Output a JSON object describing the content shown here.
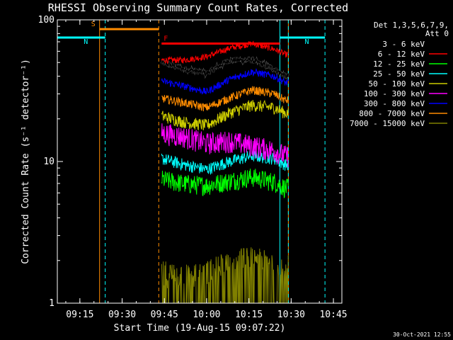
{
  "chart_data": {
    "type": "line",
    "title": "RHESSI Observing Summary Count Rates, Corrected",
    "xlabel": "Start Time (19-Aug-15 09:07:22)",
    "ylabel": "Corrected Count Rate (s⁻¹ detector⁻¹)",
    "yscale": "log",
    "ylim": [
      1,
      100
    ],
    "xlim": [
      "09:07",
      "10:48"
    ],
    "x_ticks": [
      "09:15",
      "09:30",
      "09:45",
      "10:00",
      "10:15",
      "10:30",
      "10:45"
    ],
    "y_ticks": [
      "1",
      "10",
      "100"
    ],
    "legend": {
      "position": "top-right",
      "header": [
        "Det 1,3,5,6,7,9,",
        "Att 0"
      ]
    },
    "data_gap": [
      "09:07",
      "09:44"
    ],
    "data_end": "10:29",
    "series": [
      {
        "name": "3 - 6 keV",
        "color": "#000000",
        "x": [
          "09:44",
          "09:52",
          "10:00",
          "10:08",
          "10:16",
          "10:24",
          "10:28"
        ],
        "y": [
          50,
          45,
          42,
          52,
          52,
          45,
          40
        ]
      },
      {
        "name": "6 - 12 keV",
        "color": "#ff0000",
        "x": [
          "09:44",
          "09:52",
          "10:00",
          "10:08",
          "10:16",
          "10:24",
          "10:28"
        ],
        "y": [
          52,
          52,
          55,
          63,
          68,
          62,
          57
        ]
      },
      {
        "name": "12 - 25 keV",
        "color": "#00ff00",
        "x": [
          "09:44",
          "09:52",
          "10:00",
          "10:08",
          "10:16",
          "10:24",
          "10:28"
        ],
        "y": [
          7.5,
          7.0,
          6.8,
          7.3,
          7.8,
          7.2,
          6.5
        ]
      },
      {
        "name": "25 - 50 keV",
        "color": "#00ffff",
        "x": [
          "09:44",
          "09:52",
          "10:00",
          "10:08",
          "10:16",
          "10:24",
          "10:28"
        ],
        "y": [
          10.5,
          9.5,
          8.8,
          10,
          11,
          10.5,
          9.5
        ]
      },
      {
        "name": "50 - 100 keV",
        "color": "#cccc00",
        "x": [
          "09:44",
          "09:52",
          "10:00",
          "10:08",
          "10:16",
          "10:24",
          "10:28"
        ],
        "y": [
          21,
          19,
          18,
          22,
          25,
          24,
          22
        ]
      },
      {
        "name": "100 - 300 keV",
        "color": "#ff00ff",
        "x": [
          "09:44",
          "09:52",
          "10:00",
          "10:08",
          "10:16",
          "10:24",
          "10:28"
        ],
        "y": [
          16,
          15,
          13.5,
          14,
          13,
          12,
          11
        ]
      },
      {
        "name": "300 - 800 keV",
        "color": "#0000ff",
        "x": [
          "09:44",
          "09:52",
          "10:00",
          "10:08",
          "10:16",
          "10:24",
          "10:28"
        ],
        "y": [
          37,
          34,
          31,
          38,
          43,
          40,
          36
        ]
      },
      {
        "name": "800 - 7000 keV",
        "color": "#ff8c00",
        "x": [
          "09:44",
          "09:52",
          "10:00",
          "10:08",
          "10:16",
          "10:24",
          "10:28"
        ],
        "y": [
          28,
          26,
          24,
          28,
          32,
          30,
          27
        ]
      },
      {
        "name": "7000 - 15000 keV",
        "color": "#808000",
        "x": [
          "09:44",
          "09:52",
          "10:00",
          "10:08",
          "10:16",
          "10:24",
          "10:28"
        ],
        "y": [
          1.3,
          1.2,
          1.3,
          1.7,
          1.8,
          1.6,
          1.5
        ]
      }
    ],
    "flags": [
      {
        "label": "S",
        "color": "#ff8c00",
        "start": "09:22",
        "end": "09:43",
        "level": 86,
        "style": "solid"
      },
      {
        "label": "N",
        "color": "#00ffff",
        "start": "09:07",
        "end": "09:24",
        "level": 75,
        "style": "solid"
      },
      {
        "label": "N",
        "color": "#00ffff",
        "start": "10:26",
        "end": "10:42",
        "level": 75,
        "style": "solid"
      },
      {
        "label": "F",
        "color": "#ff0000",
        "start": "09:44",
        "end": "10:26",
        "level": 68,
        "style": "solid"
      }
    ],
    "markers": [
      {
        "time": "09:22",
        "color": "#ff8c00",
        "style": "solid"
      },
      {
        "time": "09:24",
        "color": "#00ffff",
        "style": "dashed"
      },
      {
        "time": "09:43",
        "color": "#ff8c00",
        "style": "dashed"
      },
      {
        "time": "10:26",
        "color": "#00ffff",
        "style": "solid"
      },
      {
        "time": "10:29",
        "color": "#ff8c00",
        "style": "solid"
      },
      {
        "time": "10:29",
        "color": "#00ffff",
        "style": "dashed"
      },
      {
        "time": "10:42",
        "color": "#00ffff",
        "style": "dashed"
      }
    ],
    "footer": "30-Oct-2021 12:55"
  }
}
